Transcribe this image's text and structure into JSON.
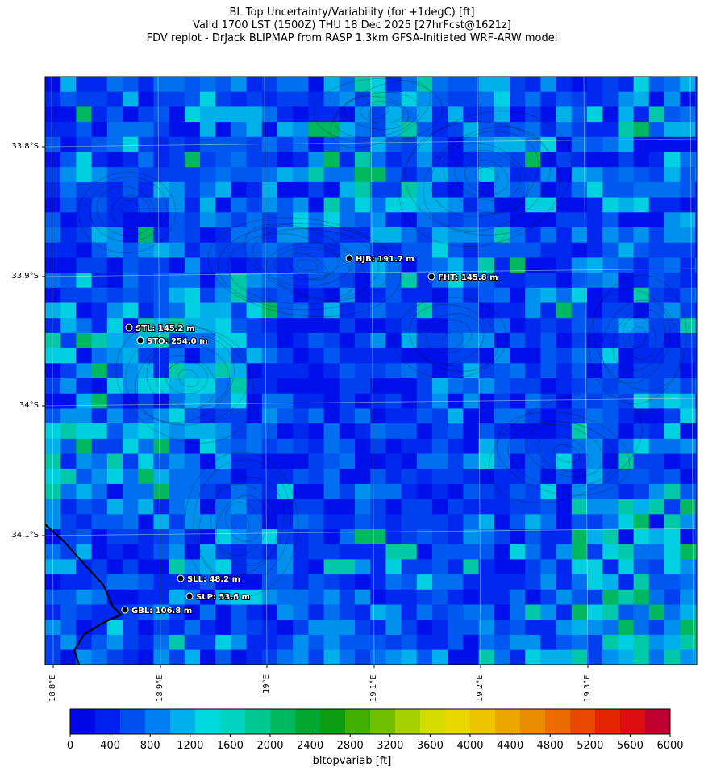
{
  "title": {
    "line1": "BL Top Uncertainty/Variability (for +1degC) [ft]",
    "line2": "Valid 1700 LST (1500Z) THU 18 Dec 2025 [27hrFcst@1621z]",
    "line3": "FDV replot - DrJack BLIPMAP from RASP 1.3km GFSA-Initiated WRF-ARW model"
  },
  "lat_labels": [
    "33.8°S",
    "33.9°S",
    "34°S",
    "34.1°S"
  ],
  "lon_labels": [
    "18.8°E",
    "18.9°E",
    "19°E",
    "19.1°E",
    "19.2°E",
    "19.3°E"
  ],
  "stations": [
    {
      "id": "HJB",
      "label": "HJB: 191.7 m"
    },
    {
      "id": "FHT",
      "label": "FHT: 145.8 m"
    },
    {
      "id": "STL",
      "label": "STL: 145.2 m"
    },
    {
      "id": "STO",
      "label": "STO: 254.0 m"
    },
    {
      "id": "SLL",
      "label": "SLL: 48.2 m"
    },
    {
      "id": "SLP",
      "label": "SLP: 53.6 m"
    },
    {
      "id": "GBL",
      "label": "GBL: 106.8 m"
    }
  ],
  "colorbar": {
    "label": "bltopvariab [ft]",
    "ticks": [
      "0",
      "400",
      "800",
      "1200",
      "1600",
      "2000",
      "2400",
      "2800",
      "3200",
      "3600",
      "4000",
      "4400",
      "4800",
      "5200",
      "5600",
      "6000"
    ],
    "colors": [
      "#0008e8",
      "#0020ee",
      "#0050f0",
      "#0080f0",
      "#00b0ec",
      "#00d8e0",
      "#00d4c0",
      "#00c890",
      "#00b860",
      "#00a830",
      "#109c10",
      "#40b000",
      "#70c000",
      "#a8d000",
      "#d4dc00",
      "#e8d800",
      "#ecc400",
      "#eca800",
      "#ec8c00",
      "#ec6c00",
      "#e84800",
      "#e42400",
      "#dc0c10",
      "#c00030"
    ]
  }
}
